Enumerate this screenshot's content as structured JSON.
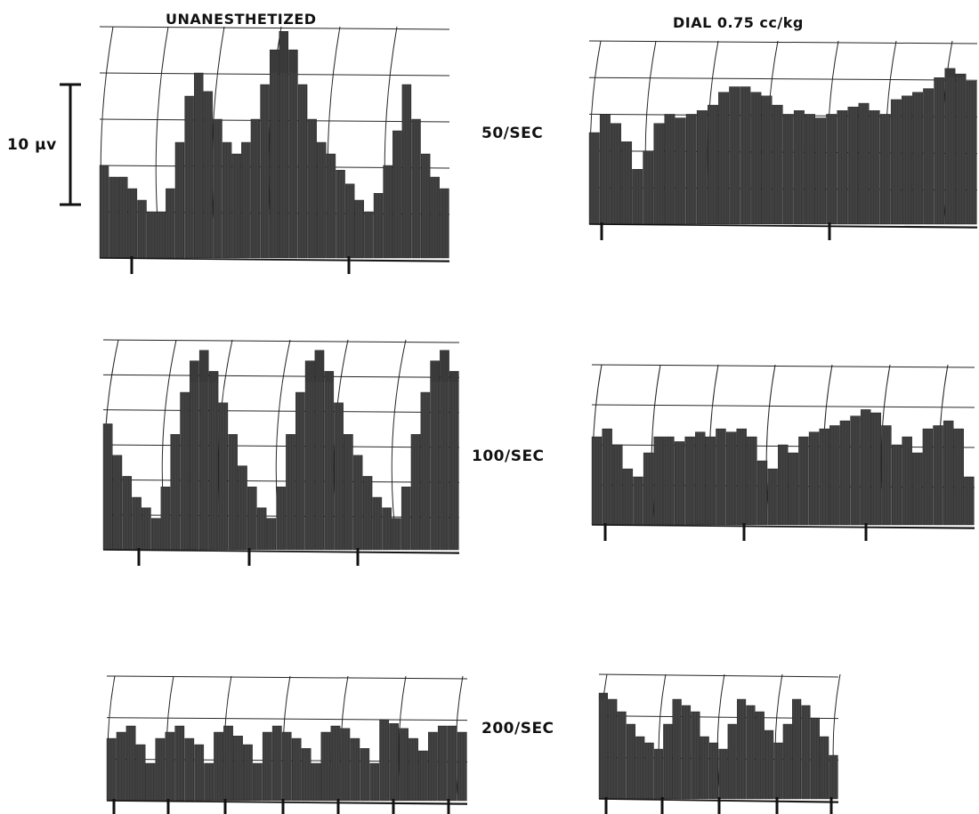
{
  "chart_data": {
    "type": "area",
    "column_headers": [
      "UNANESTHETIZED",
      "DIAL  0.75 cc/kg"
    ],
    "row_labels": [
      "50/SEC",
      "100/SEC",
      "200/SEC"
    ],
    "scale_bar": {
      "label": "10 µv",
      "value": 10,
      "unit": "µv"
    },
    "panels": [
      {
        "condition": "UNANESTHETIZED",
        "rate": "50/SEC",
        "values": [
          0.4,
          0.35,
          0.35,
          0.3,
          0.25,
          0.2,
          0.2,
          0.3,
          0.5,
          0.7,
          0.8,
          0.72,
          0.6,
          0.5,
          0.45,
          0.5,
          0.6,
          0.75,
          0.9,
          0.98,
          0.9,
          0.75,
          0.6,
          0.5,
          0.45,
          0.38,
          0.32,
          0.25,
          0.2,
          0.28,
          0.4,
          0.55,
          0.75,
          0.6,
          0.45,
          0.35,
          0.3
        ]
      },
      {
        "condition": "DIAL 0.75 cc/kg",
        "rate": "50/SEC",
        "values": [
          0.5,
          0.6,
          0.55,
          0.45,
          0.3,
          0.4,
          0.55,
          0.6,
          0.58,
          0.6,
          0.62,
          0.65,
          0.72,
          0.75,
          0.75,
          0.72,
          0.7,
          0.65,
          0.6,
          0.62,
          0.6,
          0.58,
          0.6,
          0.62,
          0.64,
          0.66,
          0.62,
          0.6,
          0.68,
          0.7,
          0.72,
          0.74,
          0.8,
          0.85,
          0.82,
          0.78
        ]
      },
      {
        "condition": "UNANESTHETIZED",
        "rate": "100/SEC",
        "values": [
          0.6,
          0.45,
          0.35,
          0.25,
          0.2,
          0.15,
          0.3,
          0.55,
          0.75,
          0.9,
          0.95,
          0.85,
          0.7,
          0.55,
          0.4,
          0.3,
          0.2,
          0.15,
          0.3,
          0.55,
          0.75,
          0.9,
          0.95,
          0.85,
          0.7,
          0.55,
          0.45,
          0.35,
          0.25,
          0.2,
          0.15,
          0.3,
          0.55,
          0.75,
          0.9,
          0.95,
          0.85
        ]
      },
      {
        "condition": "DIAL 0.75 cc/kg",
        "rate": "100/SEC",
        "values": [
          0.55,
          0.6,
          0.5,
          0.35,
          0.3,
          0.45,
          0.55,
          0.55,
          0.52,
          0.55,
          0.58,
          0.55,
          0.6,
          0.58,
          0.6,
          0.55,
          0.4,
          0.35,
          0.5,
          0.45,
          0.55,
          0.58,
          0.6,
          0.62,
          0.65,
          0.68,
          0.72,
          0.7,
          0.62,
          0.5,
          0.55,
          0.45,
          0.6,
          0.62,
          0.65,
          0.6,
          0.3
        ]
      },
      {
        "condition": "UNANESTHETIZED",
        "rate": "200/SEC",
        "values": [
          0.5,
          0.55,
          0.6,
          0.45,
          0.3,
          0.5,
          0.55,
          0.6,
          0.5,
          0.45,
          0.3,
          0.55,
          0.6,
          0.52,
          0.45,
          0.3,
          0.55,
          0.6,
          0.55,
          0.5,
          0.42,
          0.3,
          0.55,
          0.6,
          0.58,
          0.5,
          0.42,
          0.3,
          0.65,
          0.62,
          0.58,
          0.5,
          0.4,
          0.55,
          0.6,
          0.6,
          0.55
        ]
      },
      {
        "condition": "DIAL 0.75 cc/kg",
        "rate": "200/SEC",
        "values": [
          0.85,
          0.8,
          0.7,
          0.6,
          0.5,
          0.45,
          0.4,
          0.6,
          0.8,
          0.75,
          0.7,
          0.5,
          0.45,
          0.4,
          0.6,
          0.8,
          0.75,
          0.7,
          0.55,
          0.45,
          0.6,
          0.8,
          0.75,
          0.65,
          0.5,
          0.35
        ]
      }
    ]
  }
}
